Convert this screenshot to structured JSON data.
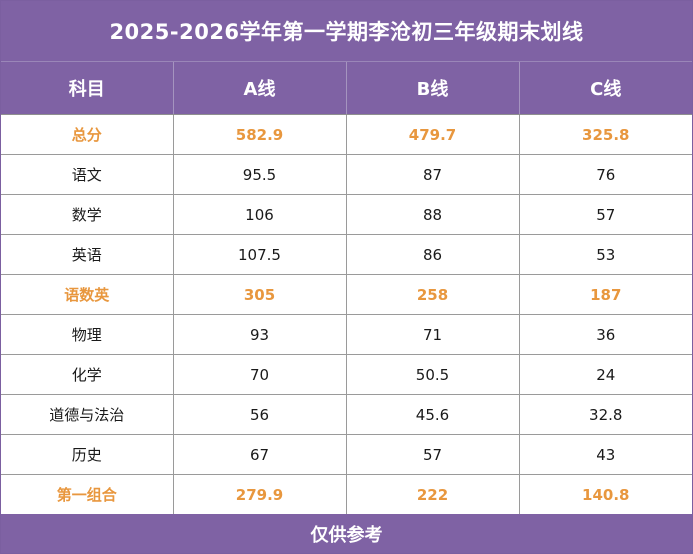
{
  "title": "2025-2026学年第一学期李沧初三年级期末划线",
  "header": {
    "subject": "科目",
    "a": "A线",
    "b": "B线",
    "c": "C线"
  },
  "rows": [
    {
      "subject": "总分",
      "a": "582.9",
      "b": "479.7",
      "c": "325.8",
      "highlight": true
    },
    {
      "subject": "语文",
      "a": "95.5",
      "b": "87",
      "c": "76",
      "highlight": false
    },
    {
      "subject": "数学",
      "a": "106",
      "b": "88",
      "c": "57",
      "highlight": false
    },
    {
      "subject": "英语",
      "a": "107.5",
      "b": "86",
      "c": "53",
      "highlight": false
    },
    {
      "subject": "语数英",
      "a": "305",
      "b": "258",
      "c": "187",
      "highlight": true
    },
    {
      "subject": "物理",
      "a": "93",
      "b": "71",
      "c": "36",
      "highlight": false
    },
    {
      "subject": "化学",
      "a": "70",
      "b": "50.5",
      "c": "24",
      "highlight": false
    },
    {
      "subject": "道德与法治",
      "a": "56",
      "b": "45.6",
      "c": "32.8",
      "highlight": false
    },
    {
      "subject": "历史",
      "a": "67",
      "b": "57",
      "c": "43",
      "highlight": false
    },
    {
      "subject": "第一组合",
      "a": "279.9",
      "b": "222",
      "c": "140.8",
      "highlight": true
    }
  ],
  "footer": "仅供参考",
  "colors": {
    "header_bg": "#7f62a4",
    "highlight_text": "#e8973e"
  }
}
